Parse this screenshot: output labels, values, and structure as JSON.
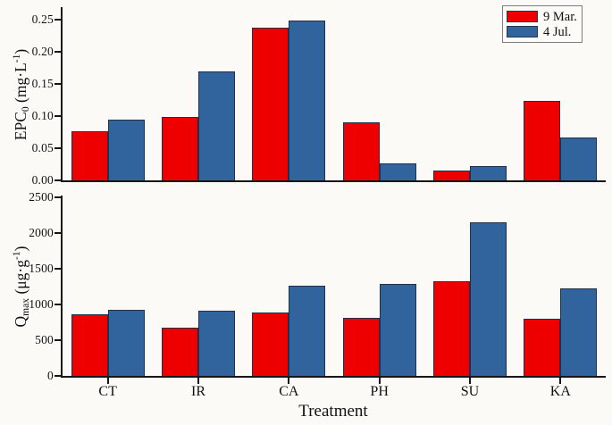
{
  "figure": {
    "background": "#fbfaf6",
    "xlabel": "Treatment"
  },
  "legend": {
    "position": "top-right",
    "entries": [
      {
        "label": "9 Mar.",
        "color": "#ee0000"
      },
      {
        "label": "4 Jul.",
        "color": "#31639c"
      }
    ]
  },
  "axis_titles": {
    "epc0": [
      {
        "t": "EPC"
      },
      {
        "t": "0",
        "style": "sub"
      },
      {
        "t": " (mg·L"
      },
      {
        "t": "-1",
        "style": "sup"
      },
      {
        "t": ")"
      }
    ],
    "qmax": [
      {
        "t": "Q"
      },
      {
        "t": "max",
        "style": "sub"
      },
      {
        "t": " (μg·g"
      },
      {
        "t": "-1",
        "style": "sup"
      },
      {
        "t": ")"
      }
    ]
  },
  "chart_data": [
    {
      "type": "bar",
      "panel": "top",
      "ylabel": "EPC0 (mg·L-1)",
      "xlabel": "",
      "categories": [
        "CT",
        "IR",
        "CA",
        "PH",
        "SU",
        "KA"
      ],
      "series": [
        {
          "name": "9 Mar.",
          "color": "#ee0000",
          "values": [
            0.076,
            0.098,
            0.237,
            0.09,
            0.015,
            0.123
          ]
        },
        {
          "name": "4 Jul.",
          "color": "#31639c",
          "values": [
            0.095,
            0.169,
            0.248,
            0.026,
            0.022,
            0.067
          ]
        }
      ],
      "ylim": [
        0,
        0.269
      ],
      "yticks": [
        0.0,
        0.05,
        0.1,
        0.15,
        0.2,
        0.25
      ],
      "ytick_labels": [
        "0.00",
        "0.05",
        "0.10",
        "0.15",
        "0.20",
        "0.25"
      ],
      "grid": false,
      "legend_position": "top-right"
    },
    {
      "type": "bar",
      "panel": "bottom",
      "ylabel": "Qmax (μg·g-1)",
      "xlabel": "Treatment",
      "categories": [
        "CT",
        "IR",
        "CA",
        "PH",
        "SU",
        "KA"
      ],
      "series": [
        {
          "name": "9 Mar.",
          "color": "#ee0000",
          "values": [
            860,
            680,
            890,
            810,
            1320,
            800
          ]
        },
        {
          "name": "4 Jul.",
          "color": "#31639c",
          "values": [
            930,
            910,
            1260,
            1290,
            2150,
            1230
          ]
        }
      ],
      "ylim": [
        0,
        2525
      ],
      "yticks": [
        0,
        500,
        1000,
        1500,
        2000,
        2500
      ],
      "ytick_labels": [
        "0",
        "500",
        "1000",
        "1500",
        "2000",
        "2500"
      ],
      "grid": false,
      "legend_position": "none"
    }
  ]
}
